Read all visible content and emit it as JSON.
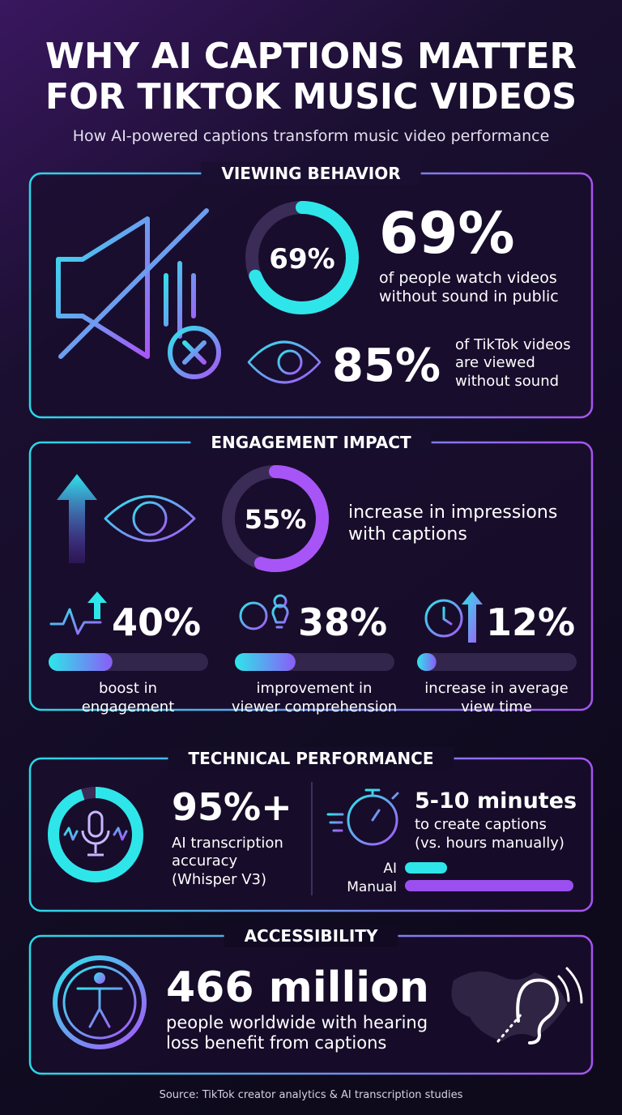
{
  "header": {
    "title_line1": "WHY AI CAPTIONS MATTER",
    "title_line2": "FOR TIKTOK MUSIC VIDEOS",
    "subtitle": "How AI-powered captions transform music video performance"
  },
  "viewing": {
    "heading": "VIEWING BEHAVIOR",
    "stats": [
      {
        "value": 69,
        "label": "69%",
        "lines": [
          "of people watch videos",
          "without sound in public"
        ]
      },
      {
        "value": 85,
        "label": "85%",
        "lines": [
          "of TikTok videos",
          "are viewed",
          "without sound"
        ]
      }
    ]
  },
  "engagement": {
    "heading": "ENGAGEMENT IMPACT",
    "main": {
      "value": 55,
      "label": "55%",
      "lines": [
        "increase in impressions",
        "with captions"
      ]
    },
    "stats": [
      {
        "value": 40,
        "label": "40%",
        "lines": [
          "boost in",
          "engagement"
        ]
      },
      {
        "value": 38,
        "label": "38%",
        "lines": [
          "improvement in",
          "viewer comprehension"
        ]
      },
      {
        "value": 12,
        "label": "12%",
        "lines": [
          "increase in average",
          "view time"
        ]
      }
    ]
  },
  "technical": {
    "heading": "TECHNICAL PERFORMANCE",
    "accuracy": {
      "value": 95,
      "label": "95%+",
      "lines": [
        "AI transcription",
        "accuracy",
        "(Whisper V3)"
      ]
    },
    "time": {
      "label": "5-10 minutes",
      "lines": [
        "to create captions",
        "(vs. hours manually)"
      ],
      "compare": [
        "AI",
        "Manual"
      ]
    }
  },
  "accessibility": {
    "heading": "ACCESSIBILITY",
    "label": "466 million",
    "lines": [
      "people worldwide with hearing",
      "loss benefit from captions"
    ]
  },
  "footer": {
    "source": "Source: TikTok creator analytics & AI transcription studies"
  }
}
